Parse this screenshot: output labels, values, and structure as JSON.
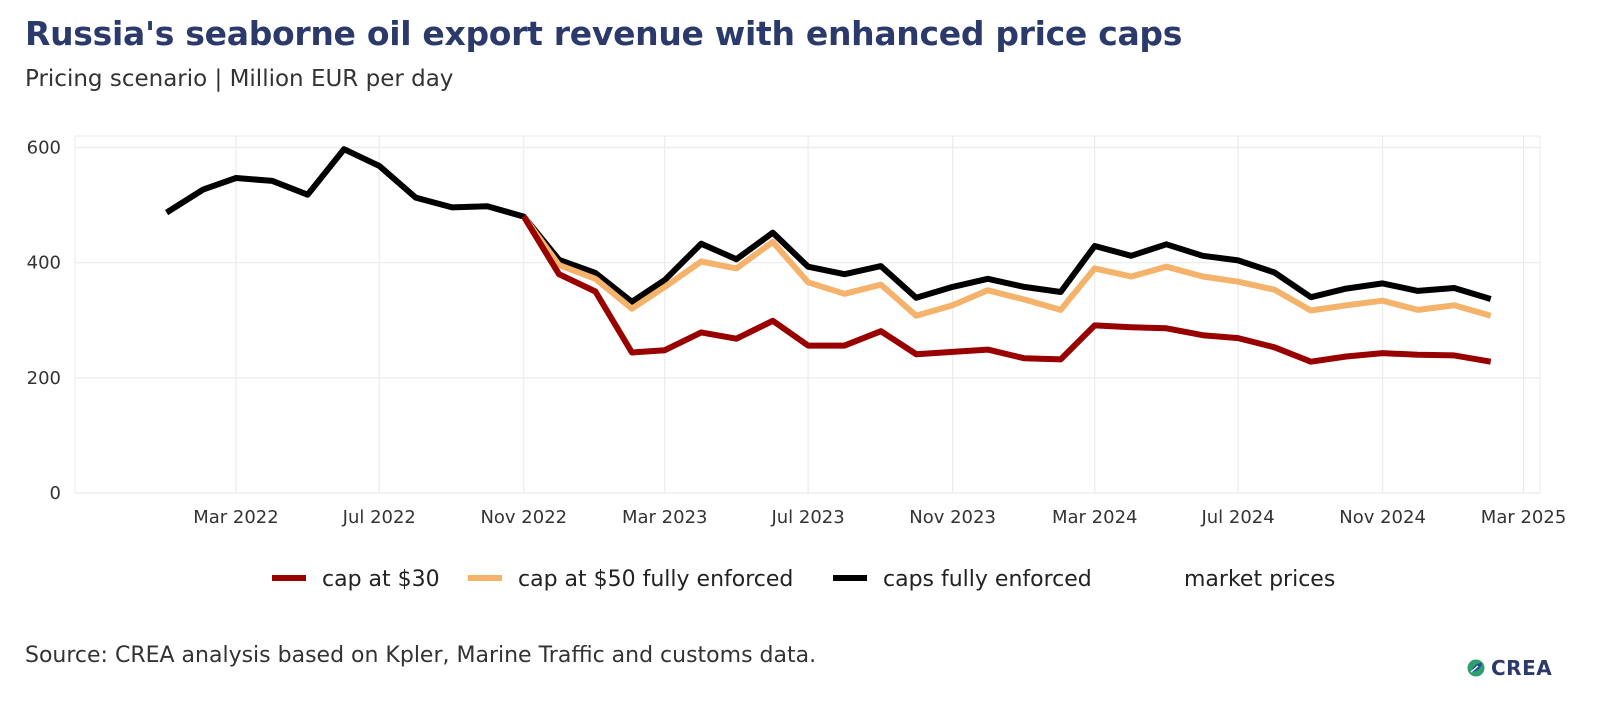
{
  "header": {
    "title": "Russia's seaborne oil export revenue with enhanced price caps",
    "subtitle": "Pricing scenario | Million EUR per day"
  },
  "footer": {
    "source": "Source: CREA analysis based on Kpler, Marine Traffic and customs data.",
    "logo_text": "CREA"
  },
  "chart_data": {
    "type": "line",
    "title": "Russia's seaborne oil export revenue with enhanced price caps",
    "subtitle": "Pricing scenario | Million EUR per day",
    "xlabel": "",
    "ylabel": "",
    "ylim": [
      0,
      620
    ],
    "xlim": [
      "2021-10-15",
      "2025-03-15"
    ],
    "yticks": [
      0,
      200,
      400,
      600
    ],
    "xticks": [
      {
        "label": "Mar 2022",
        "date": "2022-03-01"
      },
      {
        "label": "Jul 2022",
        "date": "2022-07-01"
      },
      {
        "label": "Nov 2022",
        "date": "2022-11-01"
      },
      {
        "label": "Mar 2023",
        "date": "2023-03-01"
      },
      {
        "label": "Jul 2023",
        "date": "2023-07-01"
      },
      {
        "label": "Nov 2023",
        "date": "2023-11-01"
      },
      {
        "label": "Mar 2024",
        "date": "2024-03-01"
      },
      {
        "label": "Jul 2024",
        "date": "2024-07-01"
      },
      {
        "label": "Nov 2024",
        "date": "2024-11-01"
      },
      {
        "label": "Mar 2025",
        "date": "2025-03-01"
      }
    ],
    "grid": true,
    "legend_position": "bottom",
    "legend": [
      {
        "name": "cap at $30",
        "color": "#990000"
      },
      {
        "name": "cap at $50 fully enforced",
        "color": "#f4b26a"
      },
      {
        "name": "caps fully enforced",
        "color": "#000000"
      },
      {
        "name": "market prices",
        "color": "none"
      }
    ],
    "series": [
      {
        "name": "caps fully enforced",
        "color": "#000000",
        "points": [
          [
            "2022-01-01",
            487
          ],
          [
            "2022-02-01",
            527
          ],
          [
            "2022-03-01",
            547
          ],
          [
            "2022-04-01",
            542
          ],
          [
            "2022-05-01",
            518
          ],
          [
            "2022-06-01",
            597
          ],
          [
            "2022-07-01",
            568
          ],
          [
            "2022-08-01",
            513
          ],
          [
            "2022-09-01",
            496
          ],
          [
            "2022-10-01",
            498
          ],
          [
            "2022-11-01",
            480
          ],
          [
            "2022-12-01",
            405
          ],
          [
            "2023-01-01",
            382
          ],
          [
            "2023-02-01",
            332
          ],
          [
            "2023-03-01",
            370
          ],
          [
            "2023-04-01",
            433
          ],
          [
            "2023-05-01",
            406
          ],
          [
            "2023-06-01",
            452
          ],
          [
            "2023-07-01",
            393
          ],
          [
            "2023-08-01",
            380
          ],
          [
            "2023-09-01",
            394
          ],
          [
            "2023-10-01",
            339
          ],
          [
            "2023-11-01",
            358
          ],
          [
            "2023-12-01",
            372
          ],
          [
            "2024-01-01",
            358
          ],
          [
            "2024-02-01",
            349
          ],
          [
            "2024-03-01",
            429
          ],
          [
            "2024-04-01",
            412
          ],
          [
            "2024-05-01",
            432
          ],
          [
            "2024-06-01",
            412
          ],
          [
            "2024-07-01",
            404
          ],
          [
            "2024-08-01",
            383
          ],
          [
            "2024-09-01",
            340
          ],
          [
            "2024-10-01",
            355
          ],
          [
            "2024-11-01",
            364
          ],
          [
            "2024-12-01",
            351
          ],
          [
            "2025-01-01",
            356
          ],
          [
            "2025-02-01",
            337
          ]
        ]
      },
      {
        "name": "cap at $50 fully enforced",
        "color": "#f4b26a",
        "points": [
          [
            "2022-11-01",
            480
          ],
          [
            "2022-12-01",
            396
          ],
          [
            "2023-01-01",
            372
          ],
          [
            "2023-02-01",
            320
          ],
          [
            "2023-03-01",
            358
          ],
          [
            "2023-04-01",
            402
          ],
          [
            "2023-05-01",
            390
          ],
          [
            "2023-06-01",
            436
          ],
          [
            "2023-07-01",
            366
          ],
          [
            "2023-08-01",
            346
          ],
          [
            "2023-09-01",
            362
          ],
          [
            "2023-10-01",
            308
          ],
          [
            "2023-11-01",
            326
          ],
          [
            "2023-12-01",
            352
          ],
          [
            "2024-01-01",
            336
          ],
          [
            "2024-02-01",
            318
          ],
          [
            "2024-03-01",
            390
          ],
          [
            "2024-04-01",
            376
          ],
          [
            "2024-05-01",
            393
          ],
          [
            "2024-06-01",
            376
          ],
          [
            "2024-07-01",
            367
          ],
          [
            "2024-08-01",
            353
          ],
          [
            "2024-09-01",
            317
          ],
          [
            "2024-10-01",
            326
          ],
          [
            "2024-11-01",
            334
          ],
          [
            "2024-12-01",
            318
          ],
          [
            "2025-01-01",
            326
          ],
          [
            "2025-02-01",
            308
          ]
        ]
      },
      {
        "name": "cap at $30",
        "color": "#990000",
        "points": [
          [
            "2022-11-01",
            480
          ],
          [
            "2022-12-01",
            380
          ],
          [
            "2023-01-01",
            350
          ],
          [
            "2023-02-01",
            244
          ],
          [
            "2023-03-01",
            248
          ],
          [
            "2023-04-01",
            279
          ],
          [
            "2023-05-01",
            268
          ],
          [
            "2023-06-01",
            299
          ],
          [
            "2023-07-01",
            256
          ],
          [
            "2023-08-01",
            256
          ],
          [
            "2023-09-01",
            281
          ],
          [
            "2023-10-01",
            241
          ],
          [
            "2023-11-01",
            245
          ],
          [
            "2023-12-01",
            249
          ],
          [
            "2024-01-01",
            234
          ],
          [
            "2024-02-01",
            232
          ],
          [
            "2024-03-01",
            291
          ],
          [
            "2024-04-01",
            288
          ],
          [
            "2024-05-01",
            286
          ],
          [
            "2024-06-01",
            274
          ],
          [
            "2024-07-01",
            269
          ],
          [
            "2024-08-01",
            253
          ],
          [
            "2024-09-01",
            228
          ],
          [
            "2024-10-01",
            237
          ],
          [
            "2024-11-01",
            243
          ],
          [
            "2024-12-01",
            240
          ],
          [
            "2025-01-01",
            239
          ],
          [
            "2025-02-01",
            228
          ]
        ]
      }
    ]
  }
}
